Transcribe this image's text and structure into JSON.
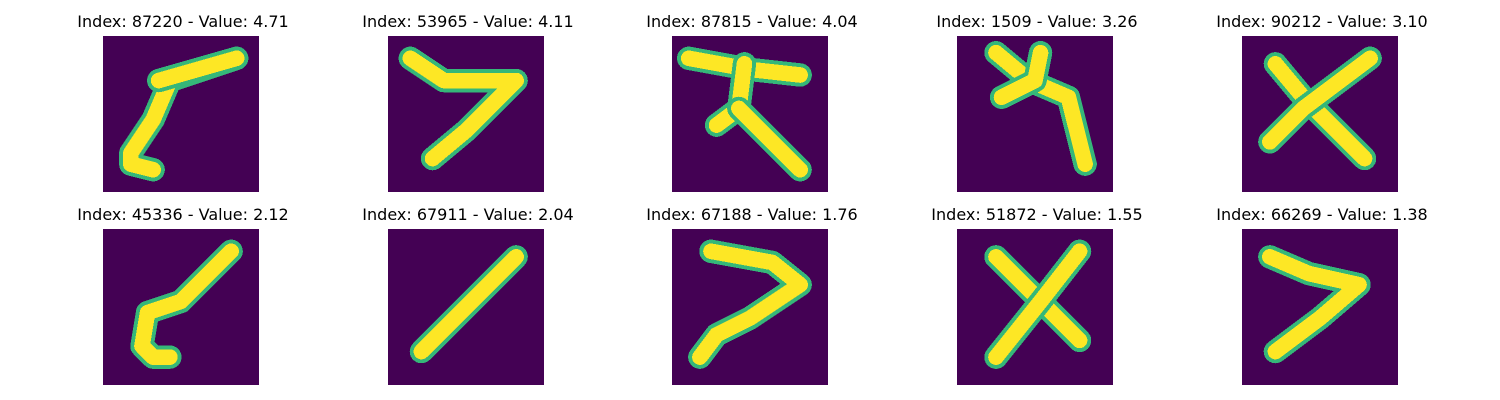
{
  "colors": {
    "background": "#440154",
    "stroke": "#fde725",
    "edge": "#35b779"
  },
  "panels": [
    {
      "title": "Index: 87220 - Value: 4.71",
      "glyph": "slanted-one-with-hook"
    },
    {
      "title": "Index: 53965 - Value: 4.11",
      "glyph": "seven"
    },
    {
      "title": "Index: 87815 - Value: 4.04",
      "glyph": "t-shaped-character"
    },
    {
      "title": "Index: 1509 - Value: 3.26",
      "glyph": "star-with-tail"
    },
    {
      "title": "Index: 90212 - Value: 3.10",
      "glyph": "x"
    },
    {
      "title": "Index: 45336 - Value: 2.12",
      "glyph": "slanted-one-with-foot"
    },
    {
      "title": "Index: 67911 - Value: 2.04",
      "glyph": "diagonal-stroke"
    },
    {
      "title": "Index: 67188 - Value: 1.76",
      "glyph": "seven-with-long-base"
    },
    {
      "title": "Index: 51872 - Value: 1.55",
      "glyph": "x"
    },
    {
      "title": "Index: 66269 - Value: 1.38",
      "glyph": "open-angle"
    }
  ]
}
